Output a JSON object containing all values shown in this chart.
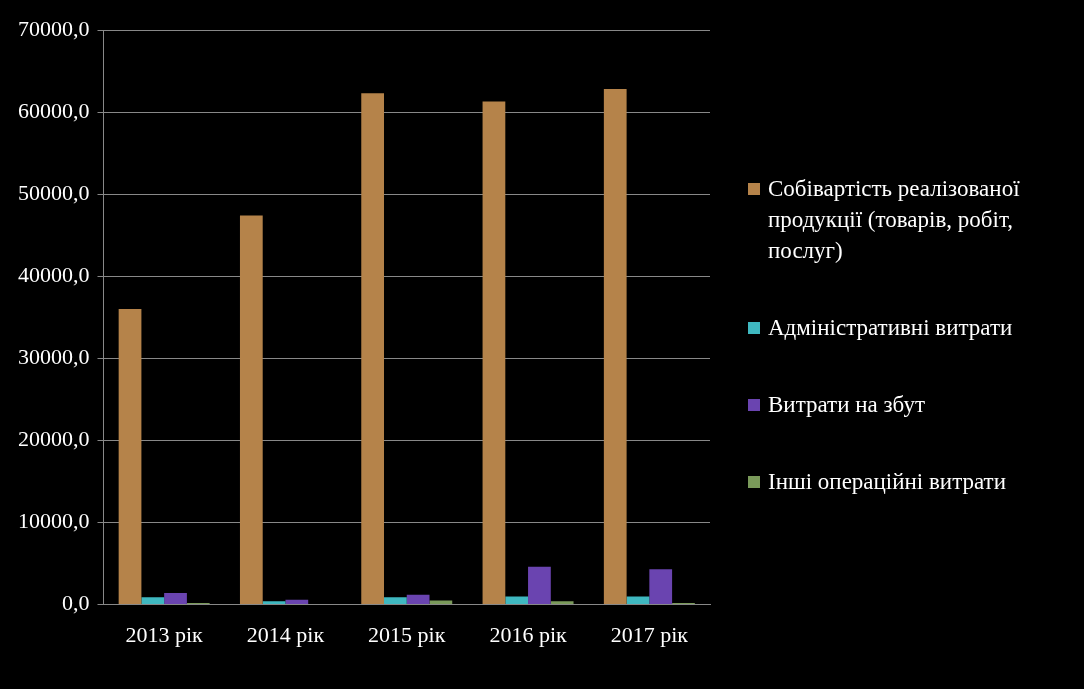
{
  "chart_data": {
    "type": "bar",
    "categories": [
      "2013 рік",
      "2014 рік",
      "2015 рік",
      "2016 рік",
      "2017 рік"
    ],
    "series": [
      {
        "name": "Собівартість реалізованої продукції (товарів, робіт, послуг)",
        "color": "#b5834a",
        "values": [
          36000,
          47400,
          62300,
          61300,
          62800
        ]
      },
      {
        "name": "Адміністративні витрати",
        "color": "#3fb8c0",
        "values": [
          900,
          400,
          900,
          1000,
          1000
        ]
      },
      {
        "name": "Витрати на збут",
        "color": "#6a44b0",
        "values": [
          1400,
          600,
          1200,
          4600,
          4300
        ]
      },
      {
        "name": "Інші операційні витрати",
        "color": "#7a9a5a",
        "values": [
          200,
          null,
          500,
          400,
          200
        ]
      }
    ],
    "ylim": [
      0,
      70000
    ],
    "yticks": [
      {
        "value": 0,
        "label": "0,0"
      },
      {
        "value": 10000,
        "label": "10000,0"
      },
      {
        "value": 20000,
        "label": "20000,0"
      },
      {
        "value": 30000,
        "label": "30000,0"
      },
      {
        "value": 40000,
        "label": "40000,0"
      },
      {
        "value": 50000,
        "label": "50000,0"
      },
      {
        "value": 60000,
        "label": "60000,0"
      },
      {
        "value": 70000,
        "label": "70000,0"
      }
    ],
    "grid": "y",
    "legend": "right"
  }
}
